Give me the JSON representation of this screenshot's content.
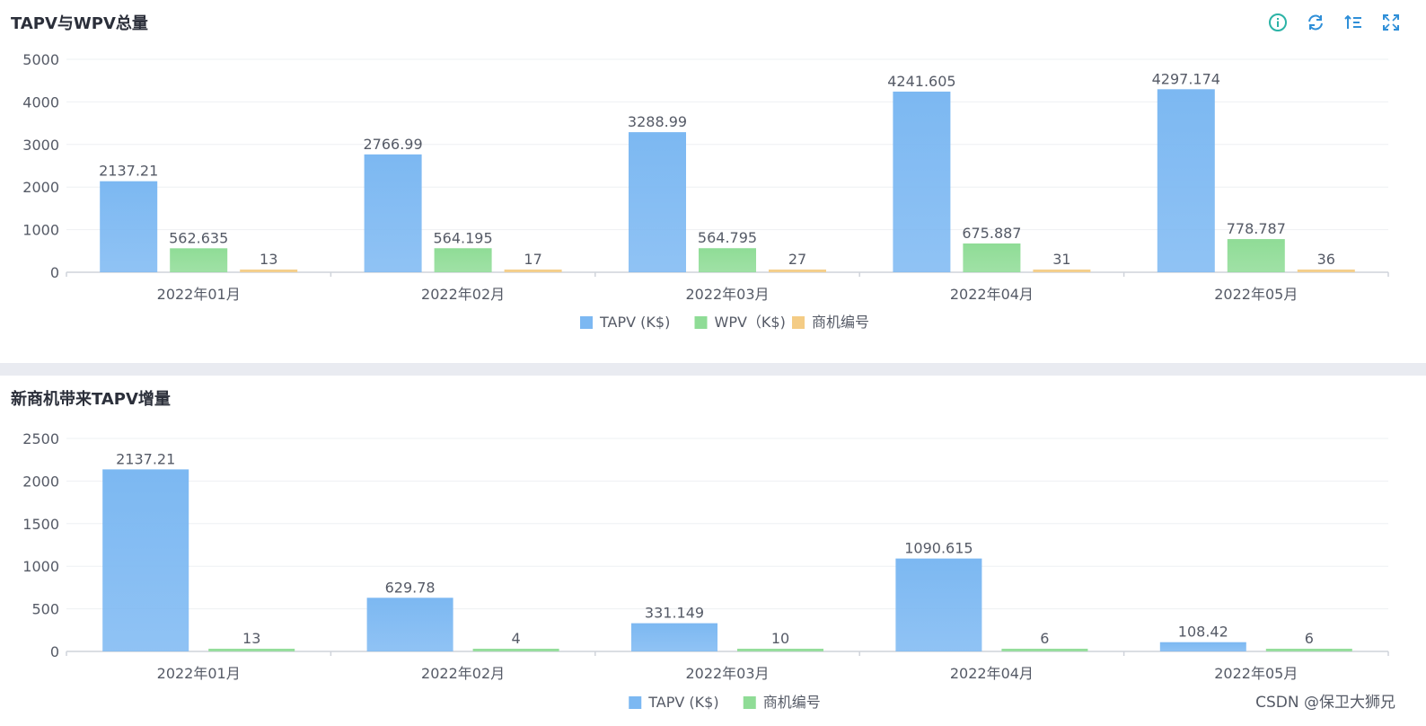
{
  "panels": [
    {
      "title": "TAPV与WPV总量",
      "toolbar": [
        {
          "name": "info-icon",
          "color": "#2bb3a6"
        },
        {
          "name": "refresh-icon",
          "color": "#2f8fd8"
        },
        {
          "name": "sort-icon",
          "color": "#2f8fd8"
        },
        {
          "name": "fullscreen-icon",
          "color": "#2f8fd8"
        }
      ]
    },
    {
      "title": "新商机带来TAPV增量"
    }
  ],
  "chart_data": [
    {
      "type": "bar",
      "title": "TAPV与WPV总量",
      "categories": [
        "2022年01月",
        "2022年02月",
        "2022年03月",
        "2022年04月",
        "2022年05月"
      ],
      "series": [
        {
          "name": "TAPV (K$)",
          "values": [
            2137.21,
            2766.99,
            3288.99,
            4241.605,
            4297.174
          ],
          "color": "#7cb8f2"
        },
        {
          "name": "WPV（K$)",
          "values": [
            562.635,
            564.195,
            564.795,
            675.887,
            778.787
          ],
          "color": "#8fdc96"
        },
        {
          "name": "商机编号",
          "values": [
            13,
            17,
            27,
            31,
            36
          ],
          "color": "#f4cc85"
        }
      ],
      "ylim": [
        0,
        5000
      ],
      "yticks": [
        0,
        1000,
        2000,
        3000,
        4000,
        5000
      ],
      "grid": true,
      "legend": "bottom"
    },
    {
      "type": "bar",
      "title": "新商机带来TAPV增量",
      "categories": [
        "2022年01月",
        "2022年02月",
        "2022年03月",
        "2022年04月",
        "2022年05月"
      ],
      "series": [
        {
          "name": "TAPV (K$)",
          "values": [
            2137.21,
            629.78,
            331.149,
            1090.615,
            108.42
          ],
          "color": "#7cb8f2"
        },
        {
          "name": "商机编号",
          "values": [
            13,
            4,
            10,
            6,
            6
          ],
          "color": "#8fdc96"
        }
      ],
      "ylim": [
        0,
        2500
      ],
      "yticks": [
        0,
        500,
        1000,
        1500,
        2000,
        2500
      ],
      "grid": true,
      "legend": "bottom"
    }
  ],
  "watermark": "CSDN @保卫大狮兄"
}
